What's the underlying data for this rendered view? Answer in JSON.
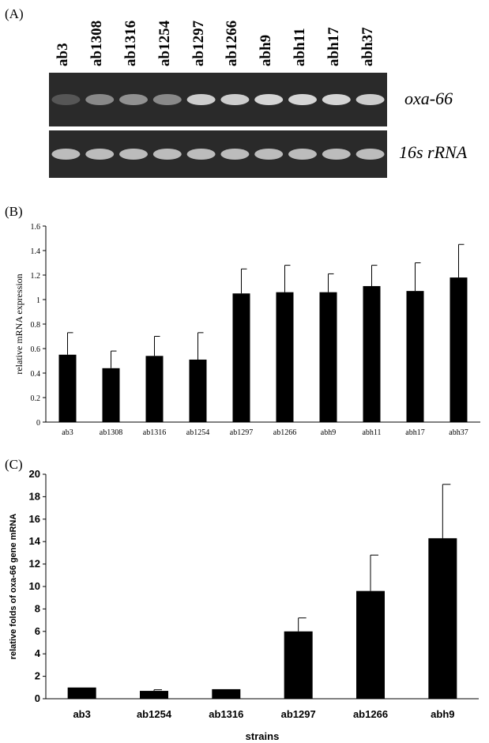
{
  "panelA": {
    "label": "(A)",
    "lanes": [
      "ab3",
      "ab1308",
      "ab1316",
      "ab1254",
      "ab1297",
      "ab1266",
      "abh9",
      "abh11",
      "abh17",
      "abh37"
    ],
    "gel_labels": [
      "oxa-66",
      "16s rRNA"
    ],
    "band_intensity_top": [
      0.15,
      0.45,
      0.5,
      0.45,
      0.85,
      0.85,
      0.9,
      0.9,
      0.9,
      0.85
    ],
    "band_intensity_bottom": [
      0.75,
      0.75,
      0.75,
      0.75,
      0.75,
      0.75,
      0.75,
      0.75,
      0.75,
      0.75
    ]
  },
  "chart_data": [
    {
      "type": "bar",
      "panel_label": "(B)",
      "categories": [
        "ab3",
        "ab1308",
        "ab1316",
        "ab1254",
        "ab1297",
        "ab1266",
        "abh9",
        "abh11",
        "abh17",
        "abh37"
      ],
      "values": [
        0.55,
        0.44,
        0.54,
        0.51,
        1.05,
        1.06,
        1.06,
        1.11,
        1.07,
        1.18
      ],
      "errors": [
        0.18,
        0.14,
        0.16,
        0.22,
        0.2,
        0.22,
        0.15,
        0.17,
        0.23,
        0.27
      ],
      "ylabel": "relative mRNA expression",
      "xlabel": "",
      "ylim": [
        0,
        1.6
      ],
      "yticks": [
        "0",
        "0.2",
        "0.4",
        "0.6",
        "0.8",
        "1",
        "1.2",
        "1.4",
        "1.6"
      ],
      "grid": false
    },
    {
      "type": "bar",
      "panel_label": "(C)",
      "categories": [
        "ab3",
        "ab1254",
        "ab1316",
        "ab1297",
        "ab1266",
        "abh9"
      ],
      "values": [
        1.0,
        0.7,
        0.85,
        6.0,
        9.6,
        14.3
      ],
      "errors": [
        0,
        0.1,
        0,
        1.2,
        3.2,
        4.8
      ],
      "ylabel": "relative folds of oxa-66 gene mRNA",
      "xlabel": "strains",
      "ylim": [
        0,
        20
      ],
      "yticks": [
        "0",
        "2",
        "4",
        "6",
        "8",
        "10",
        "12",
        "14",
        "16",
        "18",
        "20"
      ],
      "grid": false
    }
  ]
}
